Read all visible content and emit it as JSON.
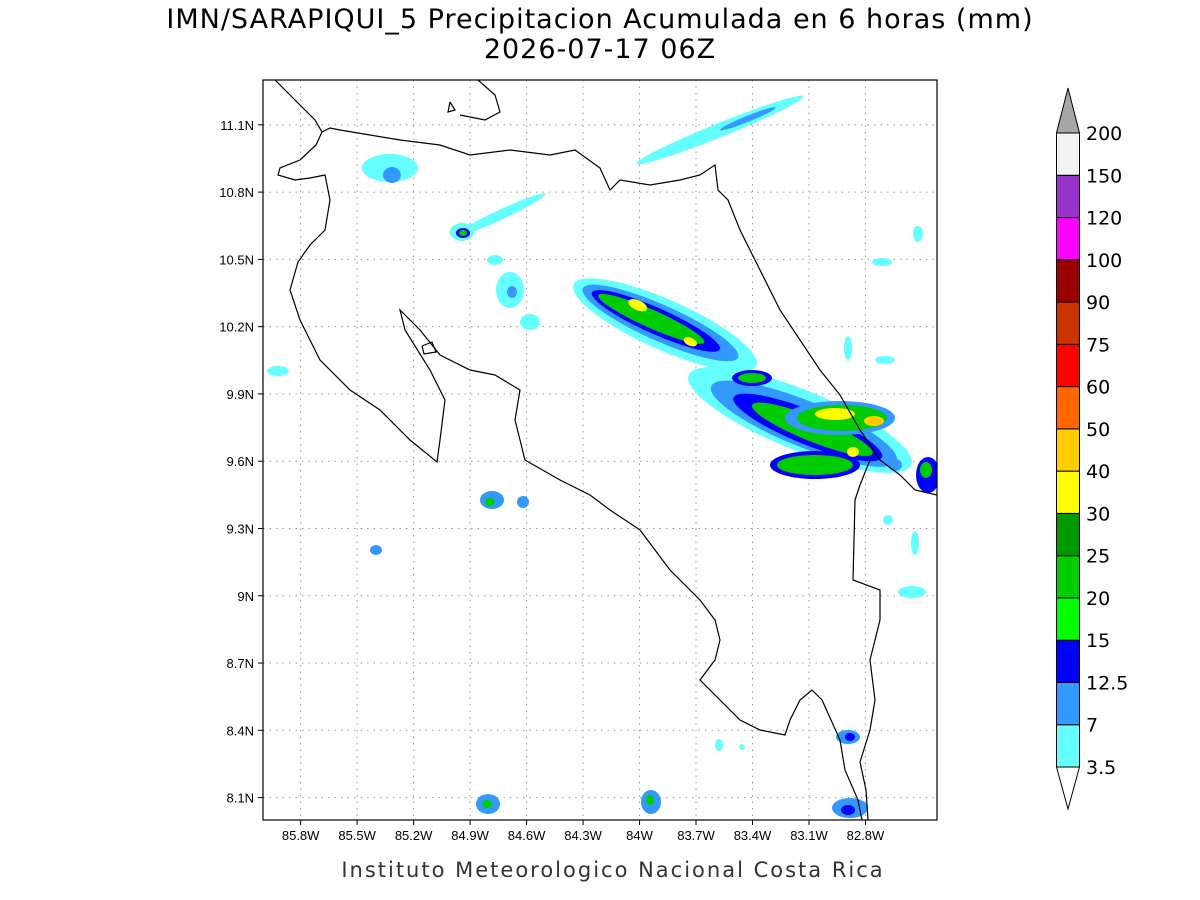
{
  "title": "IMN/SARAPIQUI_5 Precipitacion Acumulada en 6 horas (mm)",
  "subtitle": "2026-07-17 06Z",
  "map": {
    "lonlim": [
      -86.0,
      -82.42
    ],
    "latlim": [
      8.0,
      11.3
    ],
    "lon_ticks": [
      {
        "value": -85.8,
        "label": "85.8W"
      },
      {
        "value": -85.5,
        "label": "85.5W"
      },
      {
        "value": -85.2,
        "label": "85.2W"
      },
      {
        "value": -84.9,
        "label": "84.9W"
      },
      {
        "value": -84.6,
        "label": "84.6W"
      },
      {
        "value": -84.3,
        "label": "84.3W"
      },
      {
        "value": -84.0,
        "label": "84W"
      },
      {
        "value": -83.7,
        "label": "83.7W"
      },
      {
        "value": -83.4,
        "label": "83.4W"
      },
      {
        "value": -83.1,
        "label": "83.1W"
      },
      {
        "value": -82.8,
        "label": "82.8W"
      }
    ],
    "lat_ticks": [
      {
        "value": 8.1,
        "label": "8.1N"
      },
      {
        "value": 8.4,
        "label": "8.4N"
      },
      {
        "value": 8.7,
        "label": "8.7N"
      },
      {
        "value": 9.0,
        "label": "9N"
      },
      {
        "value": 9.3,
        "label": "9.3N"
      },
      {
        "value": 9.6,
        "label": "9.6N"
      },
      {
        "value": 9.9,
        "label": "9.9N"
      },
      {
        "value": 10.2,
        "label": "10.2N"
      },
      {
        "value": 10.5,
        "label": "10.5N"
      },
      {
        "value": 10.8,
        "label": "10.8N"
      },
      {
        "value": 11.1,
        "label": "11.1N"
      }
    ],
    "grid": true
  },
  "colorbar": {
    "levels": [
      3.5,
      7,
      12.5,
      15,
      20,
      25,
      30,
      40,
      50,
      60,
      75,
      90,
      100,
      120,
      150,
      200
    ],
    "colors": [
      "#66ffff",
      "#3399ff",
      "#0000ff",
      "#00ff00",
      "#00cc00",
      "#009900",
      "#ffff00",
      "#ffcc00",
      "#ff6600",
      "#ff0000",
      "#cc3300",
      "#990000",
      "#ff00ff",
      "#9933cc",
      "#f2f2f2"
    ],
    "below_color": "#ffffff",
    "above_color": "#a6a6a6"
  },
  "footer": "Instituto Meteorologico Nacional Costa Rica"
}
